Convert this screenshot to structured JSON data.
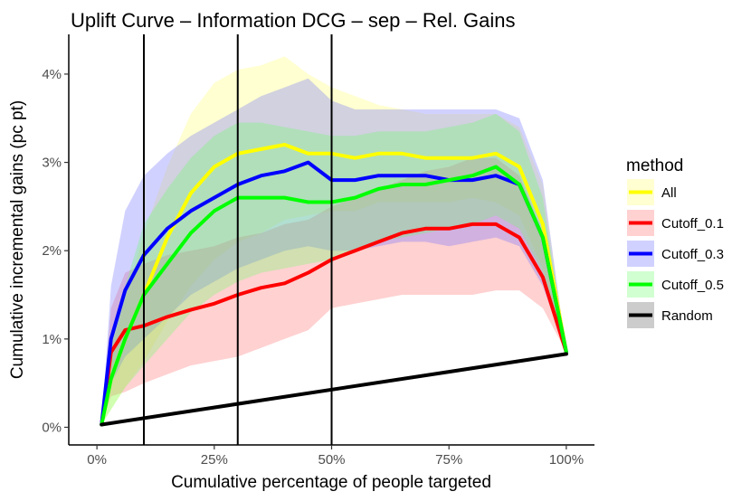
{
  "chart_data": {
    "type": "line",
    "title": "Uplift Curve –  Information DCG  –  sep  –  Rel. Gains",
    "xlabel": "Cumulative percentage of people targeted",
    "ylabel": "Cumulative incremental gains (pc pt)",
    "xlim": [
      -0.06,
      1.06
    ],
    "ylim": [
      -0.2,
      4.45
    ],
    "x_ticks": [
      0,
      0.25,
      0.5,
      0.75,
      1.0
    ],
    "x_tick_labels": [
      "0%",
      "25%",
      "50%",
      "75%",
      "100%"
    ],
    "y_ticks": [
      0,
      1,
      2,
      3,
      4
    ],
    "y_tick_labels": [
      "0%",
      "1%",
      "2%",
      "3%",
      "4%"
    ],
    "vlines": [
      0.1,
      0.3,
      0.5
    ],
    "legend": {
      "title": "method",
      "position": "right"
    },
    "series": [
      {
        "name": "All",
        "color": "#ffff00",
        "band_color": "#ffff66",
        "band_opacity": 0.3,
        "x": [
          0.01,
          0.03,
          0.06,
          0.1,
          0.15,
          0.2,
          0.25,
          0.3,
          0.35,
          0.4,
          0.45,
          0.5,
          0.55,
          0.6,
          0.65,
          0.7,
          0.75,
          0.8,
          0.85,
          0.9,
          0.95,
          1.0
        ],
        "y": [
          0.03,
          0.55,
          1.0,
          1.5,
          2.15,
          2.65,
          2.95,
          3.1,
          3.15,
          3.2,
          3.1,
          3.1,
          3.05,
          3.1,
          3.1,
          3.05,
          3.05,
          3.05,
          3.1,
          2.95,
          2.3,
          0.85
        ],
        "lower": [
          0.03,
          0.2,
          0.45,
          0.75,
          1.2,
          1.6,
          1.9,
          2.1,
          2.2,
          2.35,
          2.4,
          2.45,
          2.45,
          2.55,
          2.55,
          2.55,
          2.55,
          2.6,
          2.55,
          2.4,
          1.8,
          0.85
        ],
        "upper": [
          0.03,
          0.85,
          1.45,
          2.2,
          2.95,
          3.55,
          3.9,
          4.05,
          4.1,
          4.2,
          4.0,
          3.85,
          3.75,
          3.65,
          3.6,
          3.55,
          3.55,
          3.55,
          3.55,
          3.4,
          2.75,
          0.85
        ]
      },
      {
        "name": "Cutoff_0.1",
        "color": "#ff0000",
        "band_color": "#ff6666",
        "band_opacity": 0.3,
        "x": [
          0.01,
          0.03,
          0.06,
          0.1,
          0.15,
          0.2,
          0.25,
          0.3,
          0.35,
          0.4,
          0.45,
          0.5,
          0.55,
          0.6,
          0.65,
          0.7,
          0.75,
          0.8,
          0.85,
          0.9,
          0.95,
          1.0
        ],
        "y": [
          0.03,
          0.85,
          1.1,
          1.15,
          1.25,
          1.33,
          1.4,
          1.5,
          1.58,
          1.63,
          1.75,
          1.9,
          2.0,
          2.1,
          2.2,
          2.25,
          2.25,
          2.3,
          2.3,
          2.15,
          1.7,
          0.85
        ],
        "lower": [
          0.03,
          0.35,
          0.4,
          0.5,
          0.6,
          0.7,
          0.75,
          0.8,
          0.9,
          1.0,
          1.1,
          1.35,
          1.4,
          1.45,
          1.5,
          1.5,
          1.5,
          1.5,
          1.55,
          1.55,
          1.35,
          0.85
        ],
        "upper": [
          0.03,
          1.35,
          1.75,
          1.85,
          1.95,
          2.0,
          2.05,
          2.15,
          2.2,
          2.3,
          2.35,
          2.5,
          2.6,
          2.7,
          2.8,
          2.9,
          2.95,
          3.05,
          3.05,
          2.85,
          2.2,
          0.85
        ]
      },
      {
        "name": "Cutoff_0.3",
        "color": "#0000ff",
        "band_color": "#6666ff",
        "band_opacity": 0.3,
        "x": [
          0.01,
          0.03,
          0.06,
          0.1,
          0.15,
          0.2,
          0.25,
          0.3,
          0.35,
          0.4,
          0.45,
          0.5,
          0.55,
          0.6,
          0.65,
          0.7,
          0.75,
          0.8,
          0.85,
          0.9,
          0.95,
          1.0
        ],
        "y": [
          0.03,
          1.0,
          1.55,
          1.95,
          2.25,
          2.45,
          2.6,
          2.75,
          2.85,
          2.9,
          3.0,
          2.8,
          2.8,
          2.85,
          2.85,
          2.85,
          2.8,
          2.8,
          2.85,
          2.75,
          2.15,
          0.85
        ],
        "lower": [
          0.03,
          0.5,
          0.8,
          1.0,
          1.25,
          1.5,
          1.65,
          1.8,
          1.9,
          2.0,
          2.05,
          2.0,
          2.0,
          2.05,
          2.1,
          2.1,
          2.05,
          2.1,
          2.15,
          2.05,
          1.6,
          0.85
        ],
        "upper": [
          0.03,
          1.6,
          2.45,
          2.85,
          3.1,
          3.3,
          3.45,
          3.6,
          3.75,
          3.85,
          3.95,
          3.7,
          3.6,
          3.6,
          3.6,
          3.6,
          3.6,
          3.6,
          3.6,
          3.5,
          2.8,
          0.85
        ]
      },
      {
        "name": "Cutoff_0.5",
        "color": "#00ff00",
        "band_color": "#66ff66",
        "band_opacity": 0.3,
        "x": [
          0.01,
          0.03,
          0.06,
          0.1,
          0.15,
          0.2,
          0.25,
          0.3,
          0.35,
          0.4,
          0.45,
          0.5,
          0.55,
          0.6,
          0.65,
          0.7,
          0.75,
          0.8,
          0.85,
          0.9,
          0.95,
          1.0
        ],
        "y": [
          0.03,
          0.55,
          1.0,
          1.5,
          1.85,
          2.2,
          2.45,
          2.6,
          2.6,
          2.6,
          2.55,
          2.55,
          2.6,
          2.7,
          2.75,
          2.75,
          2.8,
          2.85,
          2.95,
          2.75,
          2.15,
          0.85
        ],
        "lower": [
          0.03,
          0.2,
          0.45,
          0.7,
          1.0,
          1.3,
          1.5,
          1.65,
          1.75,
          1.8,
          1.85,
          1.9,
          2.0,
          2.1,
          2.15,
          2.2,
          2.25,
          2.3,
          2.4,
          2.25,
          1.75,
          0.85
        ],
        "upper": [
          0.03,
          0.95,
          1.6,
          2.3,
          2.7,
          3.05,
          3.3,
          3.45,
          3.45,
          3.4,
          3.35,
          3.3,
          3.3,
          3.35,
          3.35,
          3.35,
          3.4,
          3.45,
          3.55,
          3.35,
          2.6,
          0.85
        ]
      },
      {
        "name": "Random",
        "color": "#000000",
        "band_color": "#999999",
        "band_opacity": 0.5,
        "x": [
          0.01,
          1.0
        ],
        "y": [
          0.03,
          0.83
        ]
      }
    ]
  }
}
